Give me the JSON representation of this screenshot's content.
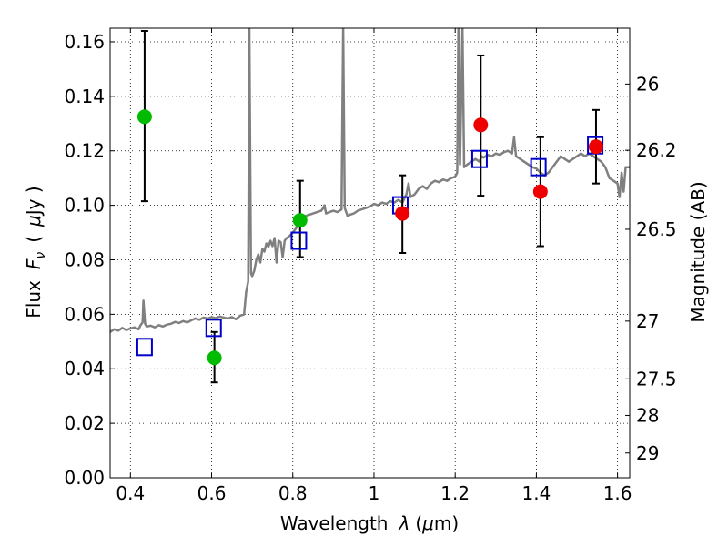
{
  "chart_data": {
    "type": "scatter",
    "xlabel_text": "Wavelength",
    "xlabel_symbol": "λ",
    "xlabel_unit_open": "(",
    "xlabel_unit_mu": "μ",
    "xlabel_unit_rest": "m)",
    "ylabel_text": "Flux",
    "ylabel_symbol": "F",
    "ylabel_sub": "ν",
    "ylabel_unit_open": "(",
    "ylabel_unit_mu": "μ",
    "ylabel_unit_rest": "Jy )",
    "y2label": "Magnitude (AB)",
    "xlim": [
      0.35,
      1.63
    ],
    "ylim": [
      0.0,
      0.165
    ],
    "grid": true,
    "xticks": [
      0.4,
      0.6,
      0.8,
      1.0,
      1.2,
      1.4,
      1.6
    ],
    "xtick_labels": [
      "0.4",
      "0.6",
      "0.8",
      "1",
      "1.2",
      "1.4",
      "1.6"
    ],
    "yticks": [
      0.0,
      0.02,
      0.04,
      0.06,
      0.08,
      0.1,
      0.12,
      0.14,
      0.16
    ],
    "ytick_labels": [
      "0.00",
      "0.02",
      "0.04",
      "0.06",
      "0.08",
      "0.10",
      "0.12",
      "0.14",
      "0.16"
    ],
    "y2ticks": [
      {
        "label": "26",
        "flux": 0.1445
      },
      {
        "label": "26.2",
        "flux": 0.1202
      },
      {
        "label": "26.5",
        "flux": 0.0912
      },
      {
        "label": "27",
        "flux": 0.0575
      },
      {
        "label": "27.5",
        "flux": 0.0363
      },
      {
        "label": "28",
        "flux": 0.0229
      },
      {
        "label": "29",
        "flux": 0.0091
      }
    ],
    "series": [
      {
        "kind": "spectrum",
        "color": "#808080",
        "points": [
          [
            0.35,
            0.0535
          ],
          [
            0.36,
            0.0545
          ],
          [
            0.37,
            0.054
          ],
          [
            0.38,
            0.055
          ],
          [
            0.39,
            0.0542
          ],
          [
            0.4,
            0.0548
          ],
          [
            0.41,
            0.0552
          ],
          [
            0.42,
            0.0545
          ],
          [
            0.425,
            0.056
          ],
          [
            0.43,
            0.057
          ],
          [
            0.432,
            0.065
          ],
          [
            0.436,
            0.0565
          ],
          [
            0.44,
            0.0555
          ],
          [
            0.45,
            0.0558
          ],
          [
            0.46,
            0.0552
          ],
          [
            0.47,
            0.056
          ],
          [
            0.48,
            0.0555
          ],
          [
            0.49,
            0.0562
          ],
          [
            0.5,
            0.0565
          ],
          [
            0.51,
            0.0572
          ],
          [
            0.52,
            0.0568
          ],
          [
            0.53,
            0.0575
          ],
          [
            0.54,
            0.057
          ],
          [
            0.55,
            0.0578
          ],
          [
            0.56,
            0.0585
          ],
          [
            0.57,
            0.058
          ],
          [
            0.58,
            0.0588
          ],
          [
            0.59,
            0.0585
          ],
          [
            0.6,
            0.059
          ],
          [
            0.61,
            0.0586
          ],
          [
            0.62,
            0.0592
          ],
          [
            0.63,
            0.0588
          ],
          [
            0.64,
            0.0585
          ],
          [
            0.65,
            0.059
          ],
          [
            0.66,
            0.0582
          ],
          [
            0.67,
            0.0595
          ],
          [
            0.68,
            0.06
          ],
          [
            0.685,
            0.068
          ],
          [
            0.69,
            0.072
          ],
          [
            0.693,
            0.165
          ],
          [
            0.697,
            0.075
          ],
          [
            0.7,
            0.074
          ],
          [
            0.705,
            0.076
          ],
          [
            0.71,
            0.08
          ],
          [
            0.715,
            0.082
          ],
          [
            0.72,
            0.079
          ],
          [
            0.725,
            0.084
          ],
          [
            0.73,
            0.083
          ],
          [
            0.735,
            0.086
          ],
          [
            0.74,
            0.0848
          ],
          [
            0.745,
            0.087
          ],
          [
            0.75,
            0.085
          ],
          [
            0.755,
            0.088
          ],
          [
            0.76,
            0.079
          ],
          [
            0.765,
            0.087
          ],
          [
            0.77,
            0.0865
          ],
          [
            0.775,
            0.081
          ],
          [
            0.78,
            0.087
          ],
          [
            0.785,
            0.088
          ],
          [
            0.79,
            0.0885
          ],
          [
            0.795,
            0.0892
          ],
          [
            0.8,
            0.09
          ],
          [
            0.805,
            0.091
          ],
          [
            0.81,
            0.092
          ],
          [
            0.815,
            0.0935
          ],
          [
            0.82,
            0.095
          ],
          [
            0.83,
            0.096
          ],
          [
            0.84,
            0.0965
          ],
          [
            0.85,
            0.097
          ],
          [
            0.86,
            0.0975
          ],
          [
            0.87,
            0.098
          ],
          [
            0.875,
            0.099
          ],
          [
            0.878,
            0.1
          ],
          [
            0.882,
            0.097
          ],
          [
            0.89,
            0.0975
          ],
          [
            0.9,
            0.098
          ],
          [
            0.91,
            0.0975
          ],
          [
            0.92,
            0.0985
          ],
          [
            0.924,
            0.165
          ],
          [
            0.928,
            0.099
          ],
          [
            0.935,
            0.096
          ],
          [
            0.94,
            0.0965
          ],
          [
            0.95,
            0.097
          ],
          [
            0.96,
            0.098
          ],
          [
            0.97,
            0.0985
          ],
          [
            0.98,
            0.099
          ],
          [
            0.99,
            0.0995
          ],
          [
            1.0,
            0.1005
          ],
          [
            1.01,
            0.1
          ],
          [
            1.02,
            0.101
          ],
          [
            1.03,
            0.1005
          ],
          [
            1.04,
            0.1015
          ],
          [
            1.05,
            0.101
          ],
          [
            1.06,
            0.102
          ],
          [
            1.07,
            0.101
          ],
          [
            1.08,
            0.104
          ],
          [
            1.085,
            0.108
          ],
          [
            1.09,
            0.103
          ],
          [
            1.1,
            0.104
          ],
          [
            1.11,
            0.106
          ],
          [
            1.12,
            0.107
          ],
          [
            1.13,
            0.106
          ],
          [
            1.14,
            0.108
          ],
          [
            1.15,
            0.109
          ],
          [
            1.16,
            0.1085
          ],
          [
            1.17,
            0.1095
          ],
          [
            1.18,
            0.109
          ],
          [
            1.19,
            0.11
          ],
          [
            1.2,
            0.1105
          ],
          [
            1.205,
            0.112
          ],
          [
            1.208,
            0.165
          ],
          [
            1.212,
            0.115
          ],
          [
            1.218,
            0.165
          ],
          [
            1.222,
            0.114
          ],
          [
            1.23,
            0.115
          ],
          [
            1.24,
            0.116
          ],
          [
            1.25,
            0.117
          ],
          [
            1.26,
            0.116
          ],
          [
            1.265,
            0.118
          ],
          [
            1.27,
            0.1175
          ],
          [
            1.28,
            0.1185
          ],
          [
            1.29,
            0.118
          ],
          [
            1.3,
            0.119
          ],
          [
            1.31,
            0.1185
          ],
          [
            1.32,
            0.1195
          ],
          [
            1.33,
            0.12
          ],
          [
            1.34,
            0.119
          ],
          [
            1.345,
            0.125
          ],
          [
            1.35,
            0.118
          ],
          [
            1.36,
            0.117
          ],
          [
            1.37,
            0.116
          ],
          [
            1.38,
            0.115
          ],
          [
            1.39,
            0.114
          ],
          [
            1.4,
            0.1135
          ],
          [
            1.41,
            0.112
          ],
          [
            1.42,
            0.111
          ],
          [
            1.43,
            0.112
          ],
          [
            1.44,
            0.114
          ],
          [
            1.45,
            0.116
          ],
          [
            1.46,
            0.118
          ],
          [
            1.47,
            0.117
          ],
          [
            1.48,
            0.116
          ],
          [
            1.49,
            0.117
          ],
          [
            1.5,
            0.118
          ],
          [
            1.51,
            0.119
          ],
          [
            1.52,
            0.118
          ],
          [
            1.53,
            0.119
          ],
          [
            1.54,
            0.118
          ],
          [
            1.55,
            0.117
          ],
          [
            1.56,
            0.116
          ],
          [
            1.57,
            0.114
          ],
          [
            1.58,
            0.11
          ],
          [
            1.59,
            0.109
          ],
          [
            1.6,
            0.108
          ],
          [
            1.605,
            0.103
          ],
          [
            1.61,
            0.112
          ],
          [
            1.615,
            0.105
          ],
          [
            1.62,
            0.114
          ],
          [
            1.63,
            0.114
          ]
        ]
      },
      {
        "kind": "model-squares",
        "color": "#0000cc",
        "points": [
          [
            0.435,
            0.048
          ],
          [
            0.605,
            0.055
          ],
          [
            0.815,
            0.087
          ],
          [
            1.065,
            0.1
          ],
          [
            1.26,
            0.117
          ],
          [
            1.405,
            0.114
          ],
          [
            1.545,
            0.122
          ]
        ]
      },
      {
        "kind": "green-points",
        "color": "#00bb00",
        "points": [
          {
            "x": 0.435,
            "y": 0.1325,
            "ylo": 0.1015,
            "yhi": 0.164
          },
          {
            "x": 0.607,
            "y": 0.044,
            "ylo": 0.035,
            "yhi": 0.0535
          },
          {
            "x": 0.818,
            "y": 0.0945,
            "ylo": 0.081,
            "yhi": 0.109
          }
        ]
      },
      {
        "kind": "red-points",
        "color": "#ee0000",
        "points": [
          {
            "x": 1.07,
            "y": 0.097,
            "ylo": 0.0825,
            "yhi": 0.111
          },
          {
            "x": 1.263,
            "y": 0.1295,
            "ylo": 0.1035,
            "yhi": 0.155
          },
          {
            "x": 1.41,
            "y": 0.105,
            "ylo": 0.085,
            "yhi": 0.125
          },
          {
            "x": 1.547,
            "y": 0.1215,
            "ylo": 0.108,
            "yhi": 0.135
          }
        ]
      }
    ]
  }
}
